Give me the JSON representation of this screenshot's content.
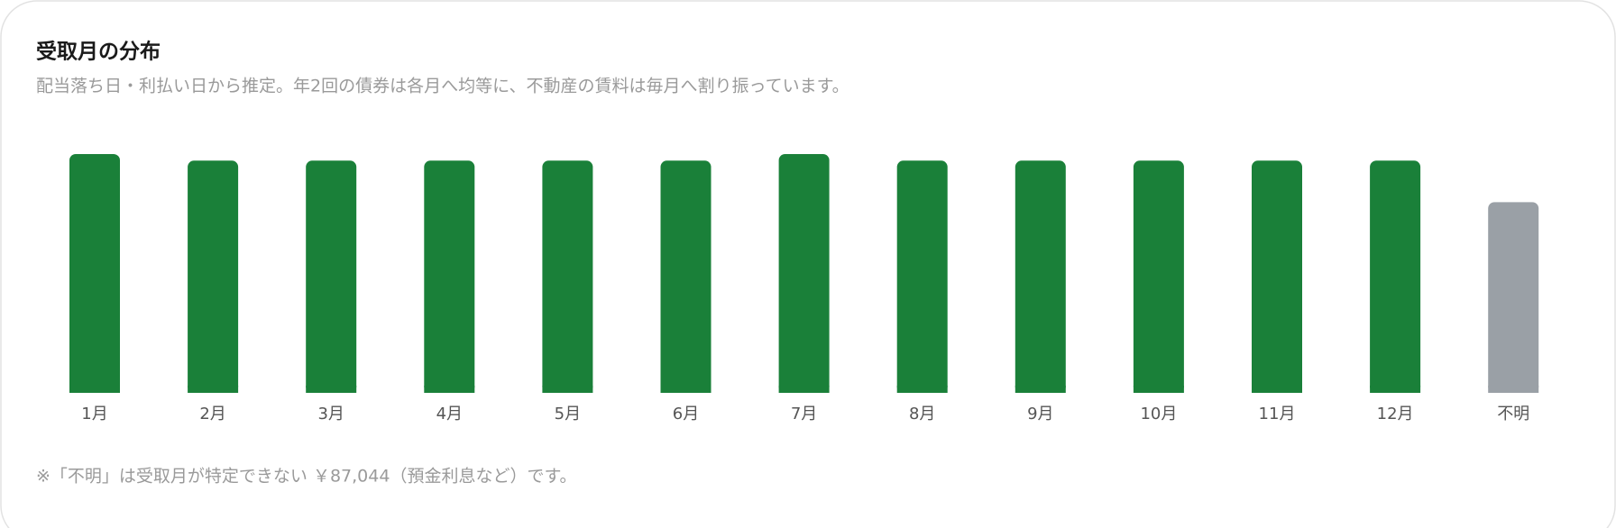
{
  "chart_data": {
    "type": "bar",
    "title": "受取月の分布",
    "subtitle": "配当落ち日・利払い日から推定。年2回の債券は各月へ均等に、不動産の賃料は毎月へ割り振っています。",
    "categories": [
      "1月",
      "2月",
      "3月",
      "4月",
      "5月",
      "6月",
      "7月",
      "8月",
      "9月",
      "10月",
      "11月",
      "12月",
      "不明"
    ],
    "values": [
      109000,
      106000,
      106000,
      106000,
      106000,
      106000,
      109000,
      106000,
      106000,
      106000,
      106000,
      106000,
      87044
    ],
    "colors": [
      "#1a8039",
      "#1a8039",
      "#1a8039",
      "#1a8039",
      "#1a8039",
      "#1a8039",
      "#1a8039",
      "#1a8039",
      "#1a8039",
      "#1a8039",
      "#1a8039",
      "#1a8039",
      "#9aa0a6"
    ],
    "note": "※「不明」は受取月が特定できない ￥87,044（預金利息など）です。"
  }
}
